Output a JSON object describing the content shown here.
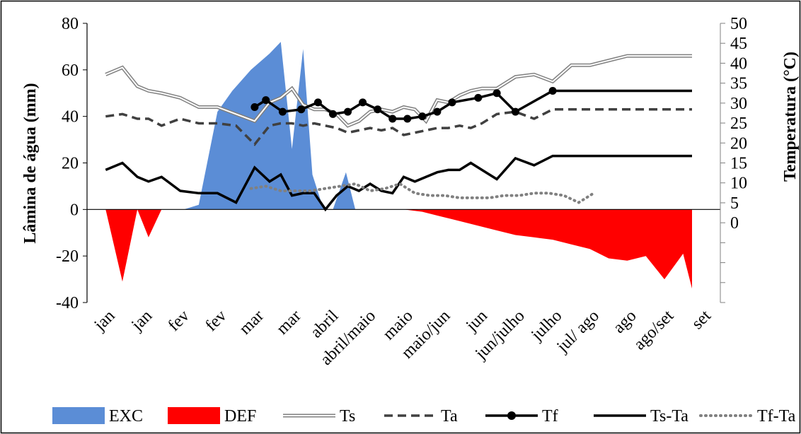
{
  "chart_data": {
    "type": "line",
    "title": "",
    "ylabel": "Lâmina de água (mm)",
    "ylabel_right": "Temperatura (°C)",
    "ylim": [
      -40,
      80
    ],
    "ylim_right": [
      -20,
      50
    ],
    "yticks": [
      -40,
      -20,
      0,
      20,
      40,
      60,
      80
    ],
    "yticks_right": [
      0,
      5,
      10,
      15,
      20,
      25,
      30,
      35,
      40,
      45,
      50
    ],
    "categories": [
      "jan",
      "jan",
      "fev",
      "fev",
      "mar",
      "mar",
      "abril",
      "abril/maio",
      "maio",
      "maio/jun",
      "jun",
      "jun/julho",
      "julho",
      "jul/ ago",
      "ago",
      "ago/set",
      "set"
    ],
    "grid": false,
    "legend_position": "bottom",
    "series": [
      {
        "name": "EXC",
        "kind": "area",
        "axis": "left",
        "color": "#5B8DD6",
        "x": [
          0,
          2.1,
          2.5,
          3.0,
          3.4,
          3.9,
          4.4,
          4.7,
          5.0,
          5.3,
          5.55,
          5.85,
          6.1,
          6.45,
          6.7,
          7.1,
          7.5,
          8.0,
          8.25,
          8.55,
          16.8
        ],
        "y": [
          0,
          0,
          2,
          42,
          51,
          60,
          67,
          72,
          26,
          69,
          15,
          0,
          0,
          16,
          0,
          0,
          0,
          0,
          0,
          0,
          0
        ]
      },
      {
        "name": "DEF",
        "kind": "area",
        "axis": "left",
        "color": "#FF0000",
        "x": [
          0,
          0.45,
          0.85,
          1.15,
          1.5,
          2.0,
          8.0,
          8.5,
          9.0,
          9.5,
          10.0,
          10.5,
          11.0,
          11.5,
          12.0,
          12.5,
          13.0,
          13.5,
          14.0,
          14.5,
          15.0,
          15.5,
          16.0,
          16.5,
          16.8
        ],
        "y": [
          0,
          -31,
          0,
          -12,
          0,
          0,
          0,
          -1,
          -3,
          -5,
          -7,
          -9,
          -11,
          -12,
          -13,
          -15,
          -17,
          -21,
          -22,
          -20,
          -30,
          -19,
          -34,
          -32,
          0
        ]
      },
      {
        "name": "Ts",
        "kind": "line",
        "axis": "left",
        "color": "#808080",
        "x": [
          0,
          0.45,
          0.85,
          1.15,
          1.5,
          2.0,
          2.5,
          3.0,
          3.5,
          4.0,
          4.4,
          4.7,
          5.0,
          5.3,
          5.6,
          5.9,
          6.2,
          6.5,
          6.8,
          7.1,
          7.4,
          7.7,
          8.0,
          8.3,
          8.6,
          8.9,
          9.2,
          9.5,
          9.8,
          10.1,
          10.5,
          11.0,
          11.5,
          12.0,
          12.5,
          13.0,
          13.5,
          14.0,
          14.5,
          15.0,
          15.5,
          16.0,
          16.5,
          16.8
        ],
        "y": [
          58,
          61,
          53,
          51,
          50,
          48,
          44,
          44,
          41,
          38,
          46,
          48,
          52,
          45,
          43,
          43,
          41,
          36,
          38,
          42,
          43,
          42,
          44,
          43,
          38,
          47,
          46,
          49,
          51,
          52,
          52,
          57,
          58,
          55,
          62,
          62,
          64,
          66,
          66,
          66,
          66,
          66,
          66,
          66
        ]
      },
      {
        "name": "Ta",
        "kind": "line",
        "axis": "left",
        "color": "#404040",
        "x": [
          0,
          0.45,
          0.85,
          1.15,
          1.5,
          2.0,
          2.5,
          3.0,
          3.5,
          4.0,
          4.4,
          4.7,
          5.0,
          5.3,
          5.6,
          5.9,
          6.2,
          6.5,
          6.8,
          7.1,
          7.4,
          7.7,
          8.0,
          8.3,
          8.6,
          8.9,
          9.2,
          9.5,
          9.8,
          10.1,
          10.5,
          11.0,
          11.5,
          12.0,
          12.5,
          13.0,
          13.5,
          14.0,
          14.5,
          15.0,
          15.5,
          16.0,
          16.5,
          16.8
        ],
        "y": [
          40,
          41,
          39,
          39,
          36,
          39,
          37,
          37,
          36,
          28,
          36,
          37,
          37,
          36,
          37,
          36,
          35,
          33,
          34,
          35,
          34,
          35,
          32,
          33,
          34,
          35,
          35,
          36,
          35,
          37,
          41,
          42,
          39,
          43,
          43,
          43,
          43,
          43,
          43,
          43,
          43,
          43,
          43,
          43
        ]
      },
      {
        "name": "Tf",
        "kind": "line-marker",
        "axis": "left",
        "color": "#000000",
        "x": [
          4.0,
          4.3,
          4.75,
          5.25,
          5.7,
          6.1,
          6.5,
          6.9,
          7.3,
          7.7,
          8.1,
          8.5,
          8.9,
          9.3,
          10.0,
          10.5,
          11.0,
          12.0,
          12.5,
          13.0,
          13.5,
          14.0,
          14.5,
          15.0,
          15.6,
          16.0,
          16.5,
          16.8
        ],
        "y": [
          44,
          47,
          42,
          43,
          46,
          41,
          42,
          46,
          43,
          39,
          39,
          40,
          42,
          46,
          48,
          50,
          42,
          51,
          51,
          51,
          51,
          51,
          51,
          51,
          51,
          51,
          51,
          51
        ]
      },
      {
        "name": "Ts-Ta",
        "kind": "line",
        "axis": "left",
        "color": "#000000",
        "x": [
          0,
          0.45,
          0.85,
          1.15,
          1.5,
          2.0,
          2.5,
          3.0,
          3.5,
          4.0,
          4.4,
          4.7,
          5.0,
          5.3,
          5.6,
          5.9,
          6.2,
          6.5,
          6.8,
          7.1,
          7.4,
          7.7,
          8.0,
          8.3,
          8.6,
          8.9,
          9.2,
          9.5,
          9.8,
          10.1,
          10.5,
          11.0,
          11.5,
          12.0,
          12.5,
          13.0,
          13.5,
          14.0,
          14.5,
          15.0,
          15.5,
          16.0,
          16.5,
          16.8
        ],
        "y": [
          17,
          20,
          14,
          12,
          14,
          8,
          7,
          7,
          3,
          18,
          12,
          15,
          6,
          7,
          7,
          0,
          6,
          10,
          8,
          11,
          8,
          7,
          14,
          12,
          14,
          16,
          17,
          17,
          20,
          17,
          13,
          22,
          19,
          23,
          23,
          23,
          23,
          23,
          23,
          23,
          23,
          23,
          23,
          23
        ]
      },
      {
        "name": "Tf-Ta",
        "kind": "dotted",
        "axis": "left",
        "color": "#808080",
        "x": [
          3.9,
          4.3,
          4.7,
          5.1,
          5.5,
          5.9,
          6.3,
          6.7,
          7.1,
          7.5,
          7.9,
          8.3,
          8.7,
          9.1,
          9.5,
          9.9,
          10.3,
          10.7,
          11.1,
          11.5,
          11.9,
          12.3,
          12.7,
          13.1
        ],
        "y": [
          9,
          10,
          8,
          8,
          8,
          9,
          10,
          11,
          8,
          9,
          11,
          7,
          6,
          6,
          5,
          5,
          5,
          6,
          6,
          7,
          7,
          6,
          3,
          7
        ]
      }
    ]
  }
}
